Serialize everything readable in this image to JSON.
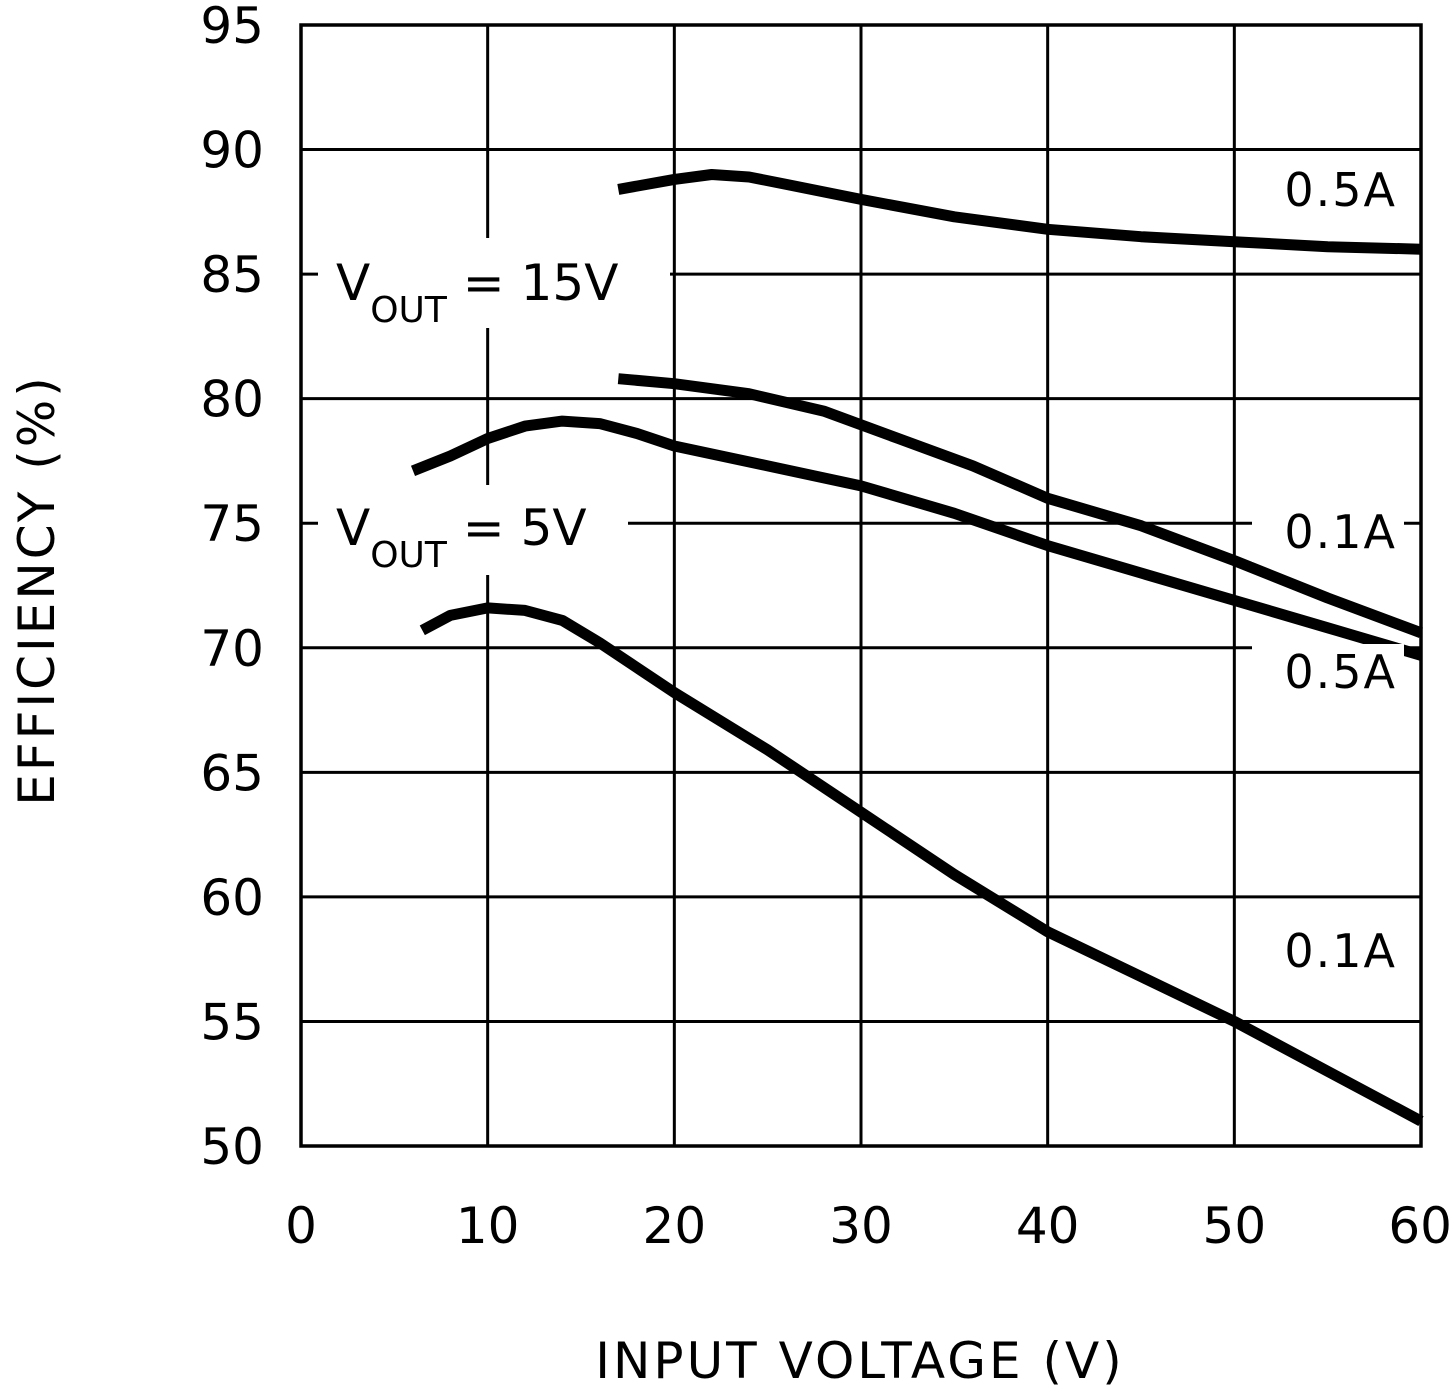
{
  "chart_data": {
    "type": "line",
    "title": "",
    "xlabel": "INPUT VOLTAGE (V)",
    "ylabel": "EFFICIENCY (%)",
    "xlim": [
      0,
      60
    ],
    "ylim": [
      50,
      95
    ],
    "xticks": [
      0,
      10,
      20,
      30,
      40,
      50,
      60
    ],
    "yticks": [
      50,
      55,
      60,
      65,
      70,
      75,
      80,
      85,
      90,
      95
    ],
    "grid": true,
    "legend": "none",
    "groups": [
      {
        "label_main": "V",
        "label_sub": "OUT",
        "label_rest": " = 15V"
      },
      {
        "label_main": "V",
        "label_sub": "OUT",
        "label_rest": " = 5V"
      }
    ],
    "series": [
      {
        "name": "0.5A",
        "group": 0,
        "x": [
          17,
          20,
          22,
          24,
          26,
          30,
          35,
          40,
          45,
          50,
          55,
          60
        ],
        "y": [
          88.4,
          88.8,
          89.0,
          88.9,
          88.6,
          88.0,
          87.3,
          86.8,
          86.5,
          86.3,
          86.1,
          86.0
        ]
      },
      {
        "name": "0.1A",
        "group": 0,
        "x": [
          17,
          20,
          24,
          28,
          32,
          36,
          40,
          45,
          50,
          55,
          60
        ],
        "y": [
          80.8,
          80.6,
          80.2,
          79.5,
          78.4,
          77.3,
          76.0,
          74.9,
          73.5,
          72.0,
          70.6
        ]
      },
      {
        "name": "0.5A",
        "group": 1,
        "x": [
          6,
          8,
          10,
          12,
          14,
          16,
          18,
          20,
          25,
          30,
          35,
          40,
          45,
          50,
          55,
          60
        ],
        "y": [
          77.1,
          77.7,
          78.4,
          78.9,
          79.1,
          79.0,
          78.6,
          78.1,
          77.3,
          76.5,
          75.4,
          74.1,
          73.0,
          71.9,
          70.8,
          69.7
        ]
      },
      {
        "name": "0.1A",
        "group": 1,
        "x": [
          6.5,
          8,
          10,
          12,
          14,
          16,
          20,
          25,
          30,
          35,
          40,
          45,
          50,
          55,
          60
        ],
        "y": [
          70.7,
          71.3,
          71.6,
          71.5,
          71.1,
          70.2,
          68.2,
          65.9,
          63.4,
          60.9,
          58.6,
          56.8,
          55.0,
          53.0,
          51.0
        ]
      }
    ]
  }
}
